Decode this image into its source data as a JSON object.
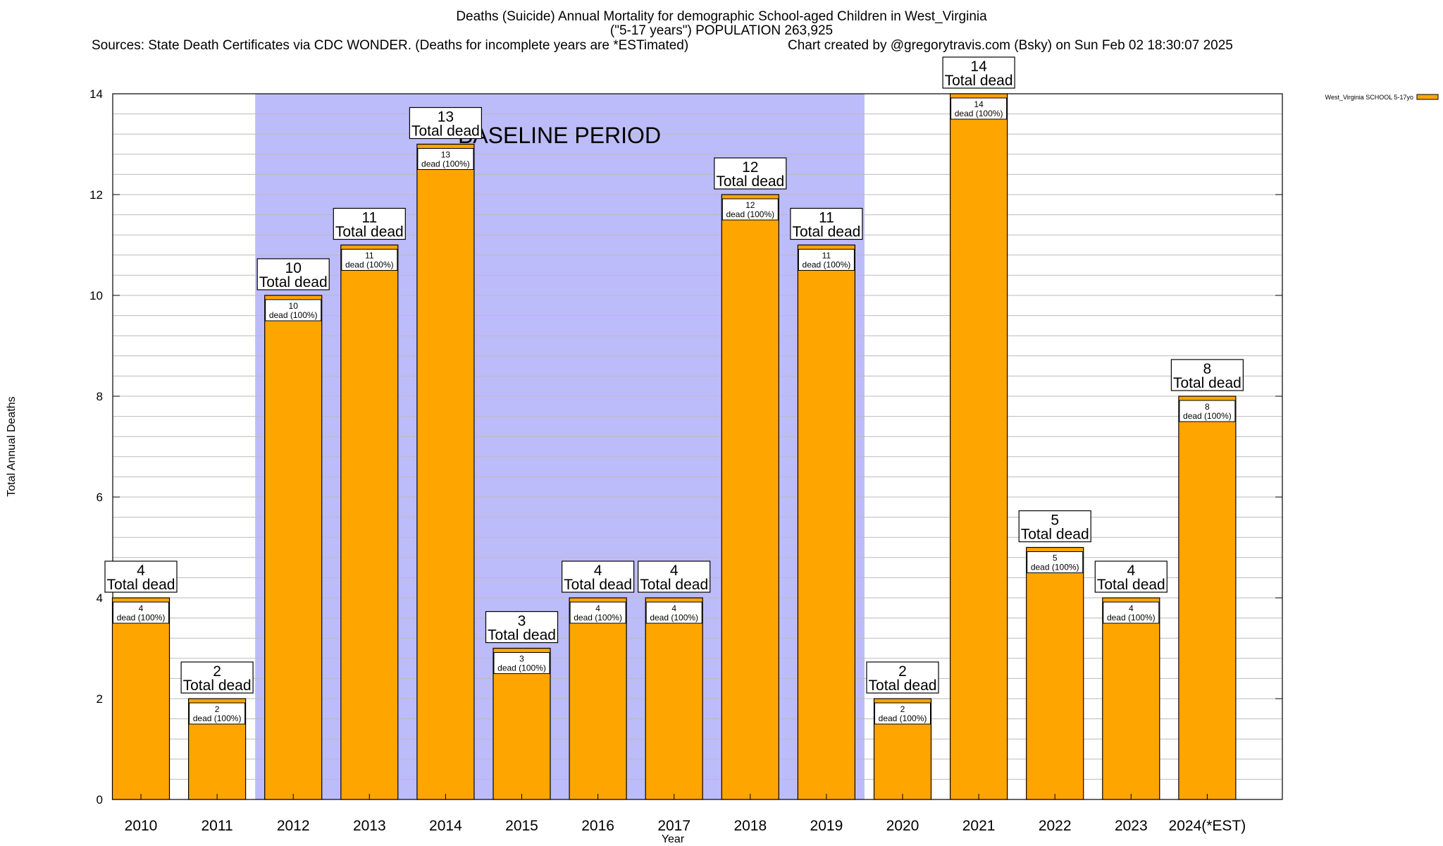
{
  "header": {
    "title_line1": "Deaths (Suicide) Annual Mortality for demographic School-aged Children in West_Virginia",
    "title_line2": "(\"5-17 years\") POPULATION 263,925",
    "sources": "Sources: State Death Certificates via CDC WONDER. (Deaths for incomplete years are *ESTimated)",
    "credit": "Chart created by @gregorytravis.com (Bsky) on Sun Feb 02 18:30:07 2025"
  },
  "chart_data": {
    "type": "bar",
    "xlabel": "Year",
    "ylabel": "Total Annual Deaths",
    "ylim": [
      0,
      14
    ],
    "yticks": [
      0,
      2,
      4,
      6,
      8,
      10,
      12,
      14
    ],
    "minor_step": 0.4,
    "grid": true,
    "categories": [
      "2010",
      "2011",
      "2012",
      "2013",
      "2014",
      "2015",
      "2016",
      "2017",
      "2018",
      "2019",
      "2020",
      "2021",
      "2022",
      "2023",
      "2024(*EST)"
    ],
    "series": [
      {
        "name": "West_Virginia SCHOOL 5-17yo",
        "values": [
          4,
          2,
          10,
          11,
          13,
          3,
          4,
          4,
          12,
          11,
          2,
          14,
          5,
          4,
          8
        ]
      }
    ],
    "total_labels": [
      "4",
      "2",
      "10",
      "11",
      "13",
      "3",
      "4",
      "4",
      "12",
      "11",
      "2",
      "14",
      "5",
      "4",
      "8"
    ],
    "total_caption": "Total dead",
    "inner_labels": [
      "4",
      "2",
      "10",
      "11",
      "13",
      "3",
      "4",
      "4",
      "12",
      "11",
      "2",
      "14",
      "5",
      "4",
      "8"
    ],
    "inner_caption": "dead (100%)",
    "baseline": {
      "label": "BASELINE PERIOD",
      "from": "2012",
      "to": "2019",
      "color": "#bcbcfa"
    },
    "legend": {
      "position": "top-right"
    },
    "colors": {
      "bar": "#ffa500",
      "bar_stroke": "#000000",
      "grid": "#bbbbbb"
    }
  }
}
